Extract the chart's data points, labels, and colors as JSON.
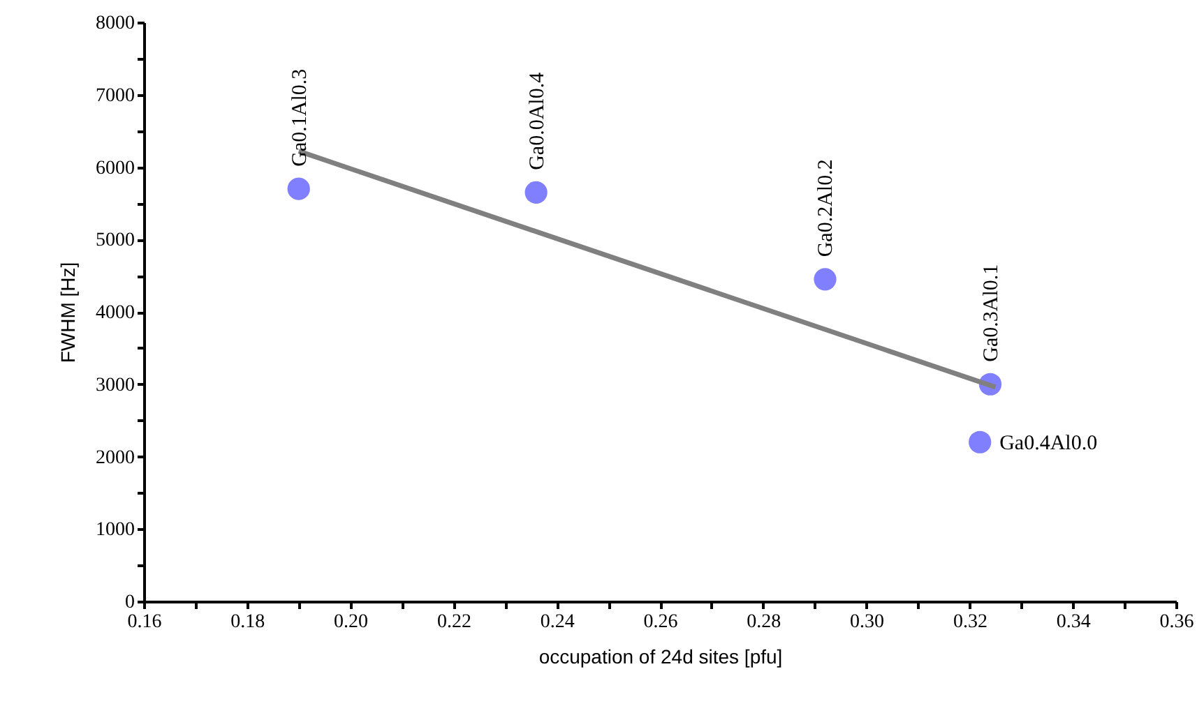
{
  "chart_data": {
    "type": "scatter",
    "xlabel": "occupation of 24d sites [pfu]",
    "ylabel": "FWHM [Hz]",
    "series": [
      {
        "color": "#8080ff",
        "marker": "circle",
        "x": [
          0.19,
          0.236,
          0.292,
          0.324,
          0.322
        ],
        "values": [
          5700,
          5650,
          4450,
          3000,
          2200
        ]
      },
      {
        "type": "line",
        "color": "#808080",
        "x": [
          0.19,
          0.325
        ],
        "values": [
          6220,
          2960
        ]
      }
    ],
    "grid": false,
    "xlim": [
      0.16,
      0.36
    ],
    "xticks": [
      0.16,
      {
        "value": 0.17,
        "label": null
      },
      0.18,
      {
        "value": 0.19,
        "label": null
      },
      {
        "value": 0.2,
        "label": "0.20"
      },
      {
        "value": 0.21,
        "label": null
      },
      0.22,
      {
        "value": 0.23,
        "label": null
      },
      0.24,
      {
        "value": 0.25,
        "label": null
      },
      0.26,
      {
        "value": 0.27,
        "label": null
      },
      0.28,
      {
        "value": 0.29,
        "label": null
      },
      {
        "value": 0.3,
        "label": "0.30"
      },
      {
        "value": 0.31,
        "label": null
      },
      0.32,
      {
        "value": 0.33,
        "label": null
      },
      0.34,
      {
        "value": 0.35,
        "label": null
      },
      0.36
    ],
    "ylim": [
      0,
      8000
    ],
    "yticks": [
      0,
      {
        "value": 500,
        "label": null
      },
      1000,
      {
        "value": 1500,
        "label": null
      },
      2000,
      {
        "value": 2500,
        "label": null
      },
      3000,
      {
        "value": 3500,
        "label": null
      },
      4000,
      {
        "value": 4500,
        "label": null
      },
      5000,
      {
        "value": 5500,
        "label": null
      },
      6000,
      {
        "value": 6500,
        "label": null
      },
      7000,
      {
        "value": 7500,
        "label": null
      },
      8000
    ],
    "annotations": [
      {
        "text": "Ga0.1Al0.3",
        "x": 0.19,
        "y": 5700
      },
      {
        "text": "Ga0.0Al0.4",
        "x": 0.236,
        "y": 5650
      },
      {
        "text": "Ga0.2Al0.2",
        "x": 0.292,
        "y": 4450
      },
      {
        "text": "Ga0.3Al0.1",
        "x": 0.324,
        "y": 3000
      },
      {
        "text": "Ga0.4Al0.0",
        "x": 0.322,
        "y": 2200
      }
    ]
  }
}
